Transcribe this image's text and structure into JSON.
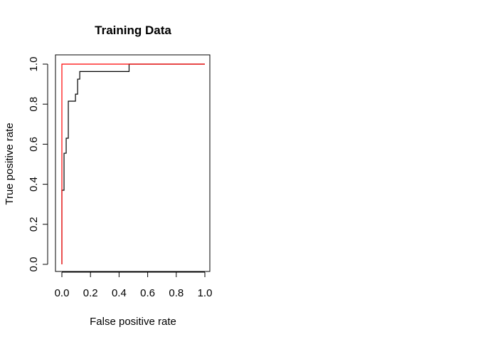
{
  "chart_data": {
    "type": "line",
    "title": "Training Data",
    "xlabel": "False positive rate",
    "ylabel": "True positive rate",
    "xlim": [
      0,
      1
    ],
    "ylim": [
      0,
      1
    ],
    "xticks": [
      "0.0",
      "0.2",
      "0.4",
      "0.6",
      "0.8",
      "1.0"
    ],
    "yticks": [
      "0.0",
      "0.2",
      "0.4",
      "0.6",
      "0.8",
      "1.0"
    ],
    "grid": false,
    "legend": "none",
    "series": [
      {
        "color": "#000000",
        "x": [
          0.0,
          0.0,
          0.015,
          0.015,
          0.03,
          0.03,
          0.045,
          0.045,
          0.095,
          0.095,
          0.11,
          0.11,
          0.125,
          0.125,
          0.47,
          0.47,
          1.0
        ],
        "y": [
          0.0,
          0.37,
          0.37,
          0.555,
          0.555,
          0.63,
          0.63,
          0.815,
          0.815,
          0.85,
          0.85,
          0.925,
          0.925,
          0.963,
          0.963,
          1.0,
          1.0
        ]
      },
      {
        "color": "#ff0000",
        "x": [
          0.0,
          0.0,
          1.0
        ],
        "y": [
          0.0,
          1.0,
          1.0
        ]
      }
    ]
  }
}
